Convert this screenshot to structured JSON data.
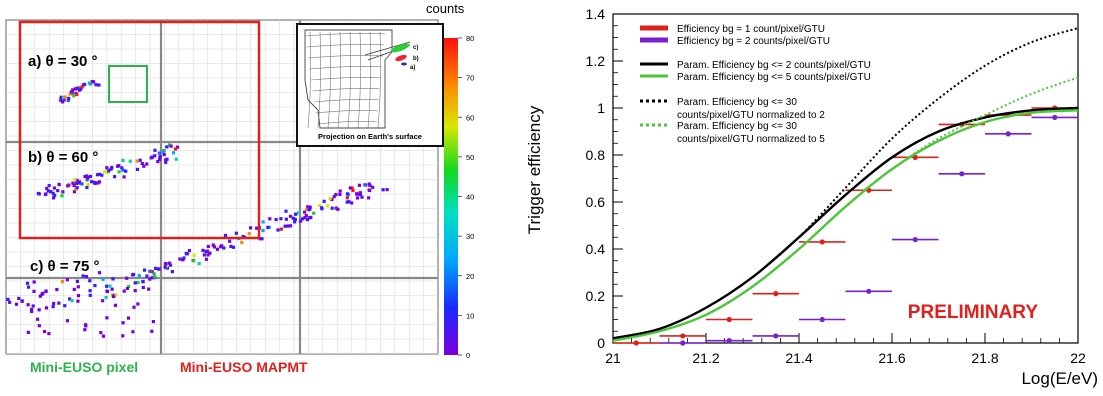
{
  "colorbar": {
    "label": "counts",
    "ticks": [
      "0",
      "10",
      "20",
      "30",
      "40",
      "50",
      "60",
      "70",
      "80"
    ]
  },
  "left_panel": {
    "angle_labels": [
      {
        "text": "a) θ = 30 °"
      },
      {
        "text": "b) θ = 60 °"
      },
      {
        "text": "c) θ = 75 °"
      }
    ],
    "inset_caption": "Projection on Earth's surface",
    "inset_tags": [
      "c)",
      "b)",
      "a)"
    ],
    "footer_pixel": "Mini-EUSO pixel",
    "footer_mapmt": "Mini-EUSO MAPMT",
    "colors": {
      "pixel": "#2db34a",
      "mapmt": "#e0201b",
      "frame": "#e0201b"
    }
  },
  "chart_data": {
    "type": "scatter",
    "ylabel": "Trigger efficiency",
    "xlabel": "Log(E/eV)",
    "xlim": [
      21,
      22
    ],
    "ylim": [
      0,
      1.4
    ],
    "x_ticks": [
      "21",
      "21.2",
      "21.4",
      "21.6",
      "21.8",
      "22"
    ],
    "y_ticks": [
      "0",
      "0.2",
      "0.4",
      "0.6",
      "0.8",
      "1",
      "1.2",
      "1.4"
    ],
    "annotation": "PRELIMINARY",
    "legend_position": "top-left",
    "series": [
      {
        "name": "Efficiency bg = 1 count/pixel/GTU",
        "kind": "points",
        "color": "#e0201b",
        "x": [
          21.05,
          21.15,
          21.25,
          21.35,
          21.45,
          21.55,
          21.65,
          21.75,
          21.85,
          21.95
        ],
        "y": [
          0.0,
          0.03,
          0.1,
          0.21,
          0.43,
          0.65,
          0.79,
          0.93,
          0.97,
          1.0
        ]
      },
      {
        "name": "Efficiency bg = 2 counts/pixel/GTU",
        "kind": "points",
        "color": "#7a1fd2",
        "x": [
          21.15,
          21.25,
          21.35,
          21.45,
          21.55,
          21.65,
          21.75,
          21.85,
          21.95
        ],
        "y": [
          0.0,
          0.01,
          0.03,
          0.1,
          0.22,
          0.44,
          0.72,
          0.89,
          0.96
        ]
      },
      {
        "name": "Param. Efficiency bg <= 2 counts/pixel/GTU",
        "kind": "line",
        "color": "#000000",
        "x": [
          21.0,
          21.1,
          21.2,
          21.3,
          21.4,
          21.5,
          21.6,
          21.7,
          21.8,
          21.9,
          22.0
        ],
        "y": [
          0.02,
          0.06,
          0.15,
          0.28,
          0.45,
          0.63,
          0.79,
          0.9,
          0.96,
          0.99,
          1.0
        ]
      },
      {
        "name": "Param. Efficiency bg <= 5 counts/pixel/GTU",
        "kind": "line",
        "color": "#4cc63a",
        "x": [
          21.0,
          21.1,
          21.2,
          21.3,
          21.4,
          21.5,
          21.6,
          21.7,
          21.8,
          21.9,
          22.0
        ],
        "y": [
          0.01,
          0.05,
          0.12,
          0.24,
          0.4,
          0.58,
          0.74,
          0.86,
          0.94,
          0.98,
          0.99
        ]
      },
      {
        "name": "Param. Efficiency bg <= 30\ncounts/pixel/GTU normalized to 2",
        "kind": "dotted",
        "color": "#000000",
        "x": [
          21.0,
          21.1,
          21.2,
          21.3,
          21.4,
          21.5,
          21.6,
          21.7,
          21.8,
          21.9,
          22.0
        ],
        "y": [
          0.02,
          0.06,
          0.15,
          0.28,
          0.45,
          0.66,
          0.87,
          1.04,
          1.18,
          1.28,
          1.34
        ]
      },
      {
        "name": "Param. Efficiency bg <= 30\ncounts/pixel/GTU normalized to 5",
        "kind": "dotted",
        "color": "#4cc63a",
        "x": [
          21.0,
          21.1,
          21.2,
          21.3,
          21.4,
          21.5,
          21.6,
          21.7,
          21.8,
          21.9,
          22.0
        ],
        "y": [
          0.01,
          0.05,
          0.12,
          0.24,
          0.4,
          0.58,
          0.74,
          0.87,
          0.97,
          1.06,
          1.13
        ]
      }
    ]
  }
}
